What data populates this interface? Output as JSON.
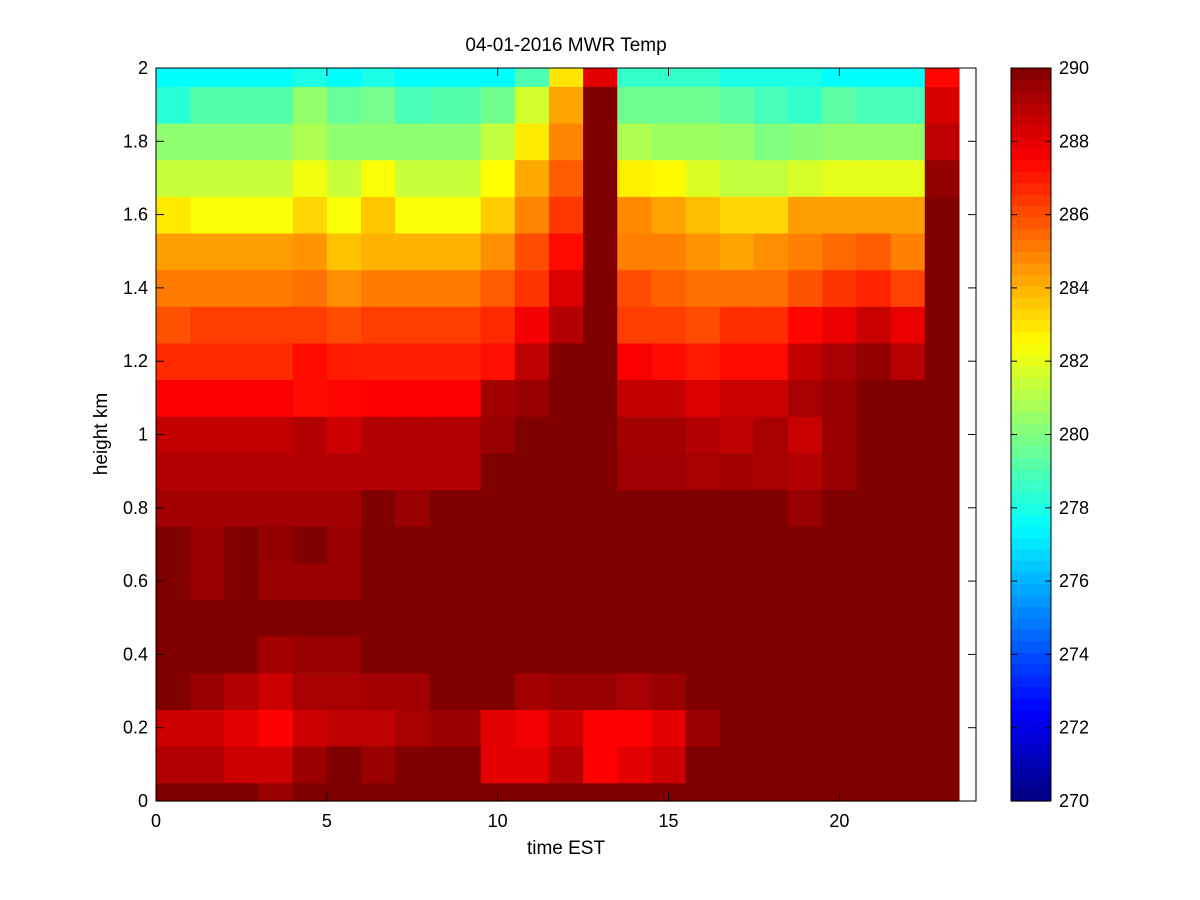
{
  "chart_data": {
    "type": "heatmap",
    "title": "04-01-2016 MWR Temp",
    "xlabel": "time EST",
    "ylabel": "height km",
    "xlim": [
      0,
      24
    ],
    "ylim": [
      0,
      2
    ],
    "xticks": [
      0,
      5,
      10,
      15,
      20
    ],
    "yticks": [
      0,
      0.2,
      0.4,
      0.6,
      0.8,
      1,
      1.2,
      1.4,
      1.6,
      1.8,
      2
    ],
    "colorbar": {
      "colormap": "jet",
      "clim": [
        270,
        290
      ],
      "ticks": [
        270,
        272,
        274,
        276,
        278,
        280,
        282,
        284,
        286,
        288,
        290
      ]
    },
    "time_edges": [
      0,
      1,
      2,
      3,
      4,
      5,
      6,
      7,
      8,
      9.5,
      10.5,
      11.5,
      12.5,
      13.5,
      14.5,
      15.5,
      16.5,
      17.5,
      18.5,
      19.5,
      20.5,
      21.5,
      22.5,
      23.5
    ],
    "height_edges": [
      0,
      0.05,
      0.15,
      0.25,
      0.35,
      0.45,
      0.55,
      0.65,
      0.75,
      0.85,
      0.95,
      1.05,
      1.15,
      1.25,
      1.35,
      1.45,
      1.55,
      1.65,
      1.75,
      1.85,
      1.95,
      2.0
    ],
    "temperature_K": [
      [
        290,
        290,
        290,
        289.5,
        290,
        290,
        290,
        290,
        290,
        290,
        290,
        290,
        290,
        290,
        290,
        290,
        290,
        290,
        290,
        290,
        290,
        290,
        290
      ],
      [
        289,
        289,
        288.5,
        288.5,
        289.5,
        290,
        289.5,
        290,
        290,
        288,
        288,
        289,
        287.5,
        288,
        288.5,
        290,
        290,
        290,
        290,
        290,
        290,
        290,
        290
      ],
      [
        288.5,
        288.5,
        288,
        287.5,
        288.5,
        288.8,
        288.8,
        289.2,
        289.5,
        288,
        287.8,
        288.5,
        287.5,
        287.5,
        288,
        289.5,
        290,
        290,
        290,
        290,
        290,
        290,
        290
      ],
      [
        290,
        289.5,
        289,
        288.5,
        289.2,
        289.2,
        289.3,
        289.3,
        290,
        290,
        289.3,
        289.5,
        289.5,
        289.2,
        289.5,
        290,
        290,
        290,
        290,
        290,
        290,
        290,
        290
      ],
      [
        290,
        290,
        290,
        289.3,
        289.5,
        289.5,
        290,
        290,
        290,
        290,
        290,
        290,
        290,
        290,
        290,
        290,
        290,
        290,
        290,
        290,
        290,
        290,
        290
      ],
      [
        290,
        290,
        290,
        290,
        290,
        290,
        290,
        290,
        290,
        290,
        290,
        290,
        290,
        290,
        290,
        290,
        290,
        290,
        290,
        290,
        290,
        290,
        290
      ],
      [
        290,
        289.5,
        290,
        289.5,
        289.5,
        289.5,
        290,
        290,
        290,
        290,
        290,
        290,
        290,
        290,
        290,
        290,
        290,
        290,
        290,
        290,
        290,
        290,
        290
      ],
      [
        290,
        289.5,
        290,
        289.6,
        290,
        289.5,
        290,
        290,
        290,
        290,
        290,
        290,
        290,
        290,
        290,
        290,
        290,
        290,
        290,
        290,
        290,
        290,
        290
      ],
      [
        289.3,
        289.3,
        289.3,
        289.3,
        289.3,
        289.3,
        290,
        289.5,
        290,
        290,
        290,
        290,
        290,
        290,
        290,
        290,
        290,
        290,
        289.5,
        290,
        290,
        290,
        290
      ],
      [
        289,
        289,
        289,
        289,
        289,
        289,
        289,
        289,
        289,
        290,
        290,
        290,
        290,
        289.4,
        289.4,
        289.2,
        289.3,
        289.2,
        289,
        289.5,
        290,
        290,
        290
      ],
      [
        288.7,
        288.7,
        288.7,
        288.7,
        289,
        288.5,
        289,
        289,
        289,
        289.5,
        290,
        290,
        290,
        289.3,
        289.3,
        289,
        288.8,
        289.2,
        288.6,
        289.5,
        290,
        290,
        290
      ],
      [
        287.6,
        287.6,
        287.6,
        287.6,
        287.3,
        287.4,
        287.6,
        287.6,
        287.6,
        289.3,
        289.5,
        290,
        290,
        288.7,
        288.7,
        288.2,
        288.6,
        288.6,
        289.2,
        289.5,
        290,
        290,
        290
      ],
      [
        286.7,
        286.7,
        286.7,
        286.7,
        287.3,
        287.0,
        286.9,
        286.9,
        286.9,
        287.2,
        288.8,
        290,
        290,
        287.6,
        287.3,
        287.0,
        287.3,
        287.3,
        288.7,
        289.2,
        289.6,
        288.9,
        290
      ],
      [
        285.9,
        286.3,
        286.3,
        286.3,
        286.3,
        286.0,
        286.3,
        286.3,
        286.3,
        286.7,
        287.7,
        289.0,
        290,
        286.3,
        286.3,
        286.0,
        286.6,
        286.6,
        287.4,
        287.9,
        288.6,
        287.9,
        290
      ],
      [
        285.1,
        285.1,
        285.1,
        285.1,
        285.3,
        284.7,
        285.1,
        285.1,
        285.1,
        285.7,
        286.5,
        288.2,
        290,
        286.0,
        285.6,
        285.3,
        285.3,
        285.3,
        285.9,
        286.5,
        286.8,
        286.2,
        290
      ],
      [
        284.4,
        284.4,
        284.4,
        284.4,
        284.6,
        283.7,
        284.0,
        284.0,
        284.0,
        284.7,
        286.0,
        287.3,
        290,
        285.0,
        285.0,
        284.6,
        284.3,
        284.7,
        285.0,
        285.4,
        285.7,
        285.0,
        290
      ],
      [
        282.9,
        282.4,
        282.4,
        282.4,
        283.3,
        282.4,
        283.6,
        282.4,
        282.4,
        283.5,
        284.9,
        286.4,
        290,
        284.8,
        284.3,
        283.8,
        283.3,
        283.3,
        284.4,
        284.4,
        284.4,
        284.4,
        290
      ],
      [
        281.4,
        281.4,
        281.4,
        281.4,
        282.2,
        281.4,
        282.4,
        281.4,
        281.4,
        282.5,
        284.2,
        285.7,
        290,
        282.8,
        282.6,
        281.8,
        281.3,
        281.3,
        281.7,
        282.0,
        282.0,
        282.0,
        289.6
      ],
      [
        280.3,
        280.3,
        280.3,
        280.3,
        280.9,
        280.3,
        280.3,
        280.3,
        280.3,
        281.3,
        282.9,
        284.9,
        290,
        280.9,
        280.6,
        280.6,
        280.5,
        280.0,
        280.2,
        280.4,
        280.4,
        280.4,
        288.8
      ],
      [
        278.3,
        279.1,
        279.1,
        279.1,
        280.4,
        279.5,
        279.8,
        278.9,
        279.1,
        279.7,
        281.6,
        284.3,
        290,
        279.7,
        279.7,
        279.7,
        279.3,
        278.9,
        278.5,
        279.3,
        278.9,
        278.9,
        288.3
      ],
      [
        277.5,
        277.5,
        277.5,
        277.5,
        278.0,
        277.5,
        278.0,
        277.5,
        277.5,
        277.5,
        279.0,
        283.0,
        288.0,
        278.5,
        278.5,
        278.5,
        278.0,
        278.0,
        278.0,
        277.5,
        277.5,
        277.5,
        287.4
      ]
    ]
  }
}
